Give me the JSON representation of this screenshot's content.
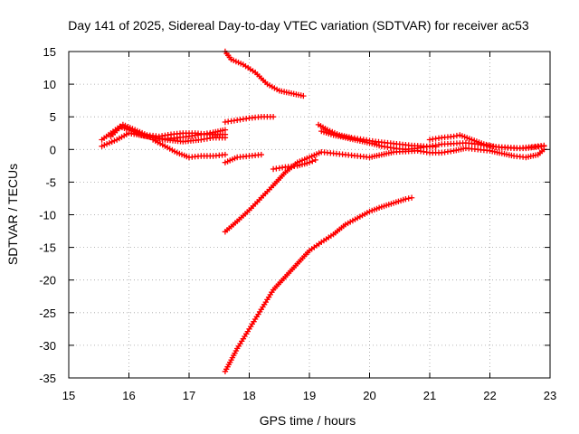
{
  "chart_data": {
    "type": "scatter",
    "title": "Day 141 of 2025, Sidereal Day-to-day VTEC variation (SDTVAR) for receiver ac53",
    "xlabel": "GPS time / hours",
    "ylabel": "SDTVAR / TECUs",
    "xlim": [
      15,
      23
    ],
    "ylim": [
      -35,
      15
    ],
    "xticks": [
      15,
      16,
      17,
      18,
      19,
      20,
      21,
      22,
      23
    ],
    "yticks": [
      15,
      10,
      5,
      0,
      -5,
      -10,
      -15,
      -20,
      -25,
      -30,
      -35
    ],
    "grid": true,
    "legend": "none",
    "marker": "plus",
    "color": "#ff0000",
    "series": [
      {
        "name": "track-1",
        "x": [
          15.55,
          15.7,
          15.85,
          16.0,
          16.2,
          16.4,
          16.6,
          16.8,
          17.0,
          17.2,
          17.4,
          17.6
        ],
        "y": [
          1.5,
          2.5,
          3.5,
          3.0,
          2.2,
          1.8,
          1.6,
          1.8,
          2.0,
          2.3,
          2.6,
          3.0
        ]
      },
      {
        "name": "track-2",
        "x": [
          15.55,
          15.8,
          16.0,
          16.3,
          16.6,
          16.9,
          17.2,
          17.4,
          17.6
        ],
        "y": [
          0.5,
          1.5,
          2.5,
          2.0,
          1.5,
          1.2,
          1.5,
          1.8,
          1.8
        ]
      },
      {
        "name": "track-3",
        "x": [
          15.7,
          15.9,
          16.1,
          16.3,
          16.5,
          16.7,
          16.9,
          17.1,
          17.3,
          17.6
        ],
        "y": [
          2.0,
          3.8,
          3.0,
          2.2,
          2.0,
          2.3,
          2.5,
          2.5,
          2.3,
          2.3
        ]
      },
      {
        "name": "track-4",
        "x": [
          16.4,
          16.6,
          16.8,
          17.0,
          17.2,
          17.4,
          17.6
        ],
        "y": [
          1.5,
          0.5,
          -0.5,
          -1.2,
          -1.0,
          -1.0,
          -0.8
        ]
      },
      {
        "name": "track-5",
        "x": [
          17.6,
          17.7,
          17.9,
          18.1,
          18.3,
          18.5,
          18.7,
          18.9
        ],
        "y": [
          15.0,
          13.8,
          13.0,
          11.8,
          10.0,
          9.0,
          8.6,
          8.2
        ]
      },
      {
        "name": "track-6",
        "x": [
          17.6,
          17.8,
          18.0,
          18.2,
          18.4
        ],
        "y": [
          4.2,
          4.5,
          4.8,
          5.0,
          5.0
        ]
      },
      {
        "name": "track-7",
        "x": [
          17.6,
          17.8,
          18.0,
          18.2
        ],
        "y": [
          -2.0,
          -1.2,
          -1.0,
          -0.8
        ]
      },
      {
        "name": "track-8",
        "x": [
          17.6,
          17.8,
          18.0,
          18.2,
          18.4,
          18.6,
          18.8,
          19.0,
          19.2,
          19.4,
          19.6,
          19.8,
          20.0,
          20.2,
          20.4,
          20.6,
          20.8,
          21.0,
          21.2,
          21.4,
          21.6,
          21.8,
          22.0,
          22.2,
          22.4,
          22.6,
          22.8,
          22.9
        ],
        "y": [
          -12.6,
          -11.0,
          -9.3,
          -7.4,
          -5.5,
          -3.5,
          -2.0,
          -1.2,
          -0.4,
          -0.6,
          -0.8,
          -1.0,
          -1.2,
          -0.8,
          -0.4,
          -0.3,
          -0.2,
          -0.5,
          -0.5,
          -0.2,
          0.2,
          0.0,
          -0.2,
          -0.6,
          -1.0,
          -1.2,
          -0.8,
          0.0
        ]
      },
      {
        "name": "track-9",
        "x": [
          17.6,
          17.8,
          18.0,
          18.2,
          18.4,
          18.6,
          18.8,
          19.0,
          19.2,
          19.4,
          19.6,
          19.8,
          20.0,
          20.2,
          20.4,
          20.6,
          20.7
        ],
        "y": [
          -34.0,
          -30.5,
          -27.5,
          -24.5,
          -21.5,
          -19.5,
          -17.5,
          -15.5,
          -14.2,
          -13.0,
          -11.5,
          -10.5,
          -9.5,
          -8.8,
          -8.2,
          -7.6,
          -7.4
        ]
      },
      {
        "name": "track-10",
        "x": [
          18.4,
          18.6,
          18.8,
          19.0,
          19.1
        ],
        "y": [
          -3.0,
          -2.7,
          -2.5,
          -2.0,
          -1.6
        ]
      },
      {
        "name": "track-11",
        "x": [
          19.15,
          19.3,
          19.5,
          19.7,
          19.9,
          20.1,
          20.3,
          20.5,
          20.7,
          20.9,
          21.1
        ],
        "y": [
          3.8,
          3.0,
          2.2,
          1.8,
          1.5,
          1.2,
          1.0,
          0.8,
          0.6,
          0.5,
          0.4
        ]
      },
      {
        "name": "track-12",
        "x": [
          19.2,
          19.4,
          19.6,
          19.8,
          20.0,
          20.2,
          20.4,
          20.6,
          20.8,
          21.0,
          21.2,
          21.4,
          21.6,
          21.8,
          22.0,
          22.2,
          22.4,
          22.6,
          22.9
        ],
        "y": [
          2.8,
          2.2,
          1.8,
          1.4,
          1.0,
          0.5,
          0.2,
          0.0,
          0.2,
          0.5,
          0.8,
          0.9,
          1.0,
          0.8,
          0.5,
          0.3,
          0.2,
          0.2,
          0.5
        ]
      },
      {
        "name": "track-13",
        "x": [
          21.0,
          21.2,
          21.4,
          21.5,
          21.7,
          21.9,
          22.1,
          22.3,
          22.5,
          22.7,
          22.9
        ],
        "y": [
          1.5,
          1.8,
          2.0,
          2.2,
          1.5,
          0.8,
          0.4,
          0.3,
          0.2,
          0.4,
          0.6
        ]
      }
    ]
  }
}
